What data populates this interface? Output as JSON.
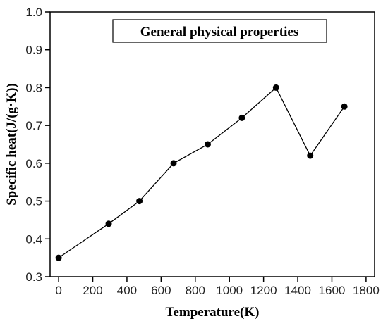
{
  "chart_data": {
    "type": "line",
    "title": "",
    "xlabel": "Temperature(K)",
    "ylabel": "Specific heat(J/(g·K))",
    "xlim": [
      -50,
      1850
    ],
    "ylim": [
      0.3,
      1.0
    ],
    "xticks": [
      0,
      200,
      400,
      600,
      800,
      1000,
      1200,
      1400,
      1600,
      1800
    ],
    "yticks": [
      0.3,
      0.4,
      0.5,
      0.6,
      0.7,
      0.8,
      0.9,
      1.0
    ],
    "xtick_labels": [
      "0",
      "200",
      "400",
      "600",
      "800",
      "1000",
      "1200",
      "1400",
      "1600",
      "1800"
    ],
    "ytick_labels": [
      "0.3",
      "0.4",
      "0.5",
      "0.6",
      "0.7",
      "0.8",
      "0.9",
      "1.0"
    ],
    "grid": false,
    "legend_position": "top-center",
    "series": [
      {
        "name": "General physical properties",
        "marker": "circle",
        "color": "#000000",
        "x": [
          0,
          293,
          473,
          673,
          873,
          1073,
          1273,
          1473,
          1673
        ],
        "y": [
          0.35,
          0.44,
          0.5,
          0.6,
          0.65,
          0.72,
          0.8,
          0.62,
          0.75
        ]
      }
    ]
  }
}
